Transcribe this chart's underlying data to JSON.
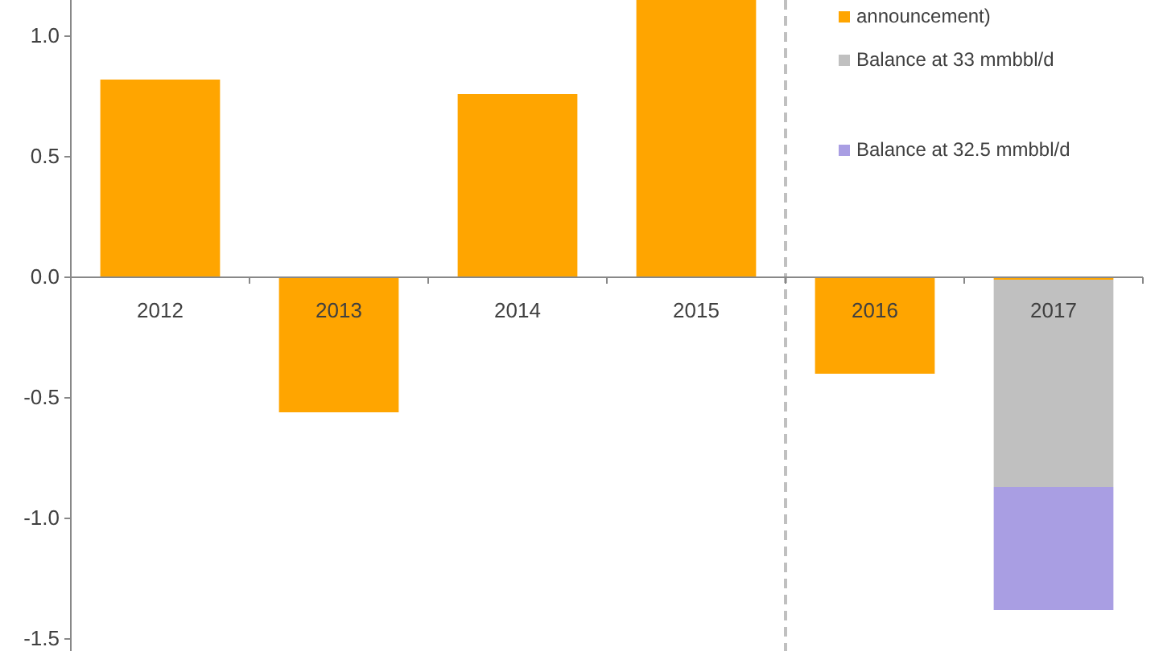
{
  "chart_data": {
    "type": "bar",
    "stacked": true,
    "categories": [
      "2012",
      "2013",
      "2014",
      "2015",
      "2016",
      "2017"
    ],
    "series": [
      {
        "name": "announcement)",
        "color": "#ffa500",
        "values": [
          0.82,
          -0.56,
          0.76,
          1.15,
          -0.4,
          -0.01
        ]
      },
      {
        "name": "Balance at 33 mmbbl/d",
        "color": "#c0c0c0",
        "values": [
          null,
          null,
          null,
          null,
          null,
          -0.86
        ]
      },
      {
        "name": "Balance at 32.5 mmbbl/d",
        "color": "#a99ee3",
        "values": [
          null,
          null,
          null,
          null,
          null,
          -0.51
        ]
      }
    ],
    "ylim": [
      -1.55,
      1.15
    ],
    "yticks": [
      {
        "value": -1.5,
        "label": "-1.5"
      },
      {
        "value": -1,
        "label": "-1.0"
      },
      {
        "value": -0.5,
        "label": "-0.5"
      },
      {
        "value": 0,
        "label": "0.0"
      },
      {
        "value": 0.5,
        "label": "0.5"
      },
      {
        "value": 1,
        "label": "1.0"
      }
    ],
    "legend": "top right"
  }
}
